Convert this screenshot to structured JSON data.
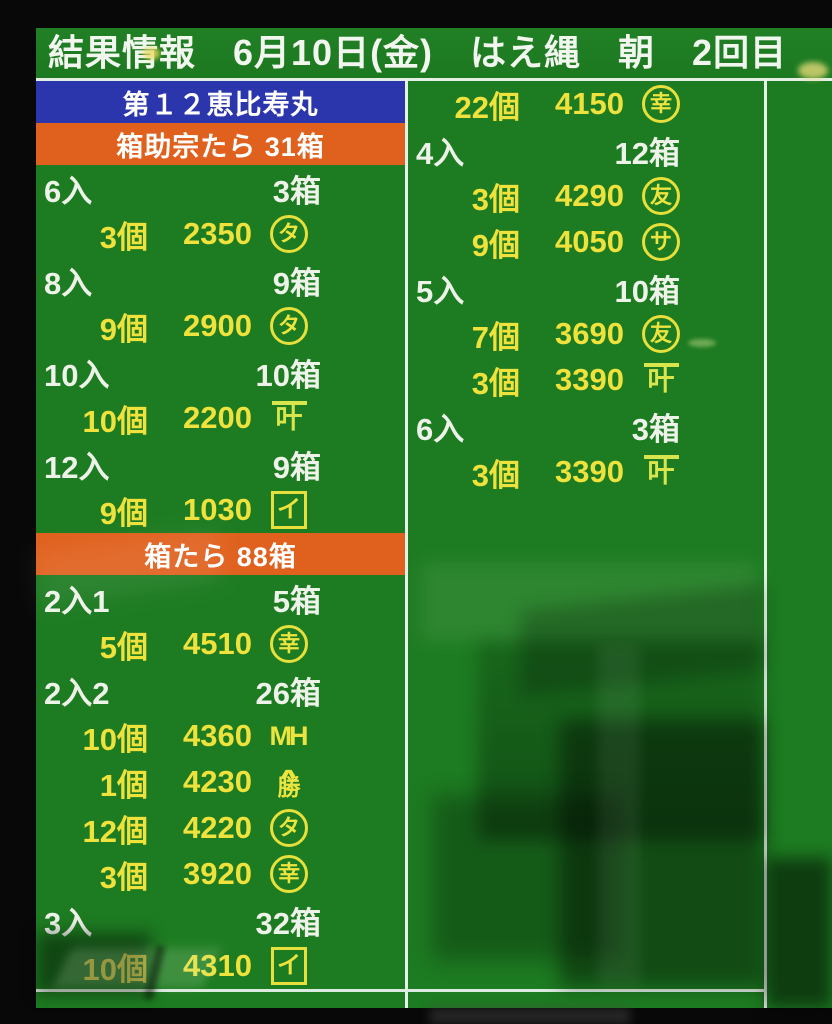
{
  "header": {
    "title": "結果情報　6月10日(金)　はえ縄　朝　2回目"
  },
  "colors": {
    "screen_green": "#1d7b21",
    "text_white": "#eef3ea",
    "text_yellow": "#efe23d",
    "vessel_blue": "#2b36ac",
    "section_orange": "#e0611e",
    "divider_white": "#e6f1e8"
  },
  "left_panel": {
    "rows": [
      {
        "type": "vessel",
        "text": "第１２恵比寿丸"
      },
      {
        "type": "section",
        "text": "箱助宗たら 31箱"
      },
      {
        "type": "size",
        "label": "6入",
        "boxes": "3箱"
      },
      {
        "type": "sale",
        "count": "3個",
        "price": "2350",
        "mark": "タ",
        "mark_style": "circle"
      },
      {
        "type": "size",
        "label": "8入",
        "boxes": "9箱"
      },
      {
        "type": "sale",
        "count": "9個",
        "price": "2900",
        "mark": "タ",
        "mark_style": "circle"
      },
      {
        "type": "size",
        "label": "10入",
        "boxes": "10箱"
      },
      {
        "type": "sale",
        "count": "10個",
        "price": "2200",
        "mark": "叶",
        "mark_style": "overline"
      },
      {
        "type": "size",
        "label": "12入",
        "boxes": "9箱"
      },
      {
        "type": "sale",
        "count": "9個",
        "price": "1030",
        "mark": "イ",
        "mark_style": "box"
      },
      {
        "type": "section",
        "text": "箱たら 88箱"
      },
      {
        "type": "size",
        "label": "2入1",
        "boxes": "5箱"
      },
      {
        "type": "sale",
        "count": "5個",
        "price": "4510",
        "mark": "幸",
        "mark_style": "circle"
      },
      {
        "type": "size",
        "label": "2入2",
        "boxes": "26箱"
      },
      {
        "type": "sale",
        "count": "10個",
        "price": "4360",
        "mark": "MH",
        "mark_style": "plain"
      },
      {
        "type": "sale",
        "count": "1個",
        "price": "4230",
        "mark": "勝",
        "mark_style": "hat"
      },
      {
        "type": "sale",
        "count": "12個",
        "price": "4220",
        "mark": "タ",
        "mark_style": "circle"
      },
      {
        "type": "sale",
        "count": "3個",
        "price": "3920",
        "mark": "幸",
        "mark_style": "circle"
      },
      {
        "type": "size",
        "label": "3入",
        "boxes": "32箱"
      },
      {
        "type": "sale",
        "count": "10個",
        "price": "4310",
        "mark": "イ",
        "mark_style": "box"
      }
    ]
  },
  "middle_panel": {
    "rows": [
      {
        "type": "sale",
        "count": "22個",
        "price": "4150",
        "mark": "幸",
        "mark_style": "circle"
      },
      {
        "type": "size",
        "label": "4入",
        "boxes": "12箱"
      },
      {
        "type": "sale",
        "count": "3個",
        "price": "4290",
        "mark": "友",
        "mark_style": "circle"
      },
      {
        "type": "sale",
        "count": "9個",
        "price": "4050",
        "mark": "サ",
        "mark_style": "circle"
      },
      {
        "type": "size",
        "label": "5入",
        "boxes": "10箱"
      },
      {
        "type": "sale",
        "count": "7個",
        "price": "3690",
        "mark": "友",
        "mark_style": "circle"
      },
      {
        "type": "sale",
        "count": "3個",
        "price": "3390",
        "mark": "叶",
        "mark_style": "overline"
      },
      {
        "type": "size",
        "label": "6入",
        "boxes": "3箱"
      },
      {
        "type": "sale",
        "count": "3個",
        "price": "3390",
        "mark": "叶",
        "mark_style": "overline"
      }
    ]
  }
}
